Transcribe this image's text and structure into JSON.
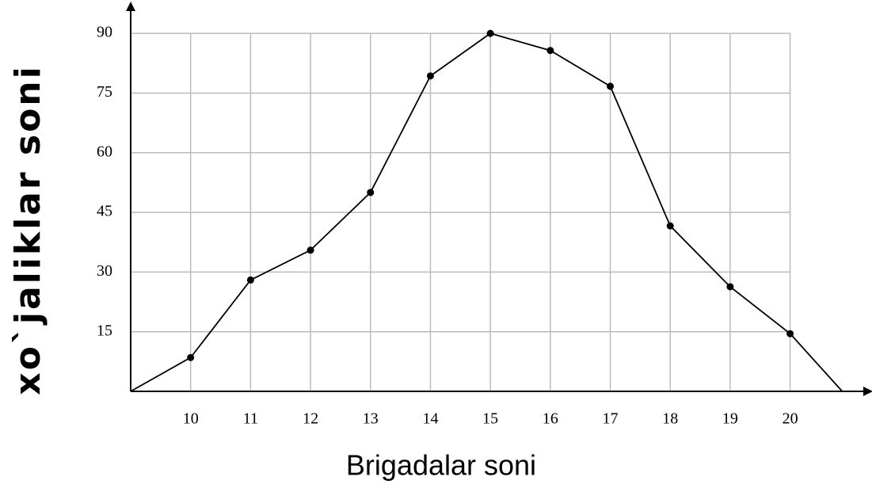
{
  "chart_data": {
    "type": "line",
    "x_label": "Brigadalar soni",
    "y_label": "xo`jaliklar soni",
    "x": [
      9,
      10,
      11,
      12,
      13,
      14,
      15,
      16,
      17,
      18,
      19,
      20,
      20.87
    ],
    "series": [
      {
        "name": null,
        "color": "#000000",
        "values": [
          0,
          8.5,
          28,
          35.5,
          50,
          79.3,
          90,
          85.7,
          76.7,
          41.6,
          26.3,
          14.5,
          0
        ]
      }
    ],
    "xlim": [
      9,
      21.3
    ],
    "xticks": [
      10,
      11,
      12,
      13,
      14,
      15,
      16,
      17,
      18,
      19,
      20
    ],
    "ylim": [
      0,
      96
    ],
    "yticks": [
      15,
      30,
      45,
      60,
      75,
      90
    ],
    "grid": true
  }
}
